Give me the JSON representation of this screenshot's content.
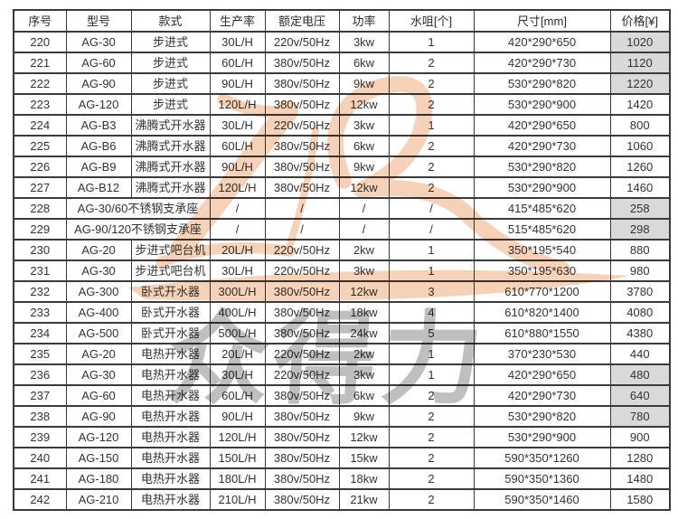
{
  "chart_data": {
    "type": "table",
    "columns": [
      "序号",
      "型号",
      "款式",
      "生产率",
      "额定电压",
      "功率",
      "水咀[个]",
      "尺寸[mm]",
      "价格[¥]"
    ],
    "rows": [
      {
        "no": "220",
        "model": "AG-30",
        "style": "步进式",
        "rate": "30L/H",
        "voltage": "220v/50Hz",
        "power": "3kw",
        "nozzles": "1",
        "size": "420*290*650",
        "price": "1020",
        "price_shaded": true,
        "merged": false
      },
      {
        "no": "221",
        "model": "AG-60",
        "style": "步进式",
        "rate": "60L/H",
        "voltage": "380v/50Hz",
        "power": "6kw",
        "nozzles": "2",
        "size": "420*290*730",
        "price": "1120",
        "price_shaded": true,
        "merged": false
      },
      {
        "no": "222",
        "model": "AG-90",
        "style": "步进式",
        "rate": "90L/H",
        "voltage": "380v/50Hz",
        "power": "9kw",
        "nozzles": "2",
        "size": "530*290*820",
        "price": "1220",
        "price_shaded": true,
        "merged": false
      },
      {
        "no": "223",
        "model": "AG-120",
        "style": "步进式",
        "rate": "120L/H",
        "voltage": "380v/50Hz",
        "power": "12kw",
        "nozzles": "2",
        "size": "530*290*900",
        "price": "1420",
        "price_shaded": false,
        "merged": false
      },
      {
        "no": "224",
        "model": "AG-B3",
        "style": "沸腾式开水器",
        "rate": "30L/H",
        "voltage": "220v/50Hz",
        "power": "3kw",
        "nozzles": "1",
        "size": "420*290*650",
        "price": "800",
        "price_shaded": false,
        "merged": false
      },
      {
        "no": "225",
        "model": "AG-B6",
        "style": "沸腾式开水器",
        "rate": "60L/H",
        "voltage": "380v/50Hz",
        "power": "6kw",
        "nozzles": "2",
        "size": "420*290*730",
        "price": "1060",
        "price_shaded": false,
        "merged": false
      },
      {
        "no": "226",
        "model": "AG-B9",
        "style": "沸腾式开水器",
        "rate": "90L/H",
        "voltage": "380v/50Hz",
        "power": "9kw",
        "nozzles": "2",
        "size": "530*290*820",
        "price": "1260",
        "price_shaded": false,
        "merged": false
      },
      {
        "no": "227",
        "model": "AG-B12",
        "style": "沸腾式开水器",
        "rate": "120L/H",
        "voltage": "380v/50Hz",
        "power": "12kw",
        "nozzles": "2",
        "size": "530*290*900",
        "price": "1460",
        "price_shaded": false,
        "merged": false
      },
      {
        "no": "228",
        "model": "AG-30/60不锈钢支承座",
        "style": "",
        "rate": "/",
        "voltage": "/",
        "power": "/",
        "nozzles": "/",
        "size": "415*485*620",
        "price": "258",
        "price_shaded": true,
        "merged": true
      },
      {
        "no": "229",
        "model": "AG-90/120不锈钢支承座",
        "style": "",
        "rate": "/",
        "voltage": "/",
        "power": "/",
        "nozzles": "/",
        "size": "515*485*620",
        "price": "298",
        "price_shaded": true,
        "merged": true
      },
      {
        "no": "230",
        "model": "AG-20",
        "style": "步进式吧台机",
        "rate": "20L/H",
        "voltage": "220v/50Hz",
        "power": "2kw",
        "nozzles": "1",
        "size": "350*195*540",
        "price": "880",
        "price_shaded": false,
        "merged": false
      },
      {
        "no": "231",
        "model": "AG-30",
        "style": "步进式吧台机",
        "rate": "30L/H",
        "voltage": "220v/50Hz",
        "power": "3kw",
        "nozzles": "1",
        "size": "350*195*630",
        "price": "980",
        "price_shaded": false,
        "merged": false
      },
      {
        "no": "232",
        "model": "AG-300",
        "style": "卧式开水器",
        "rate": "300L/H",
        "voltage": "380v/50Hz",
        "power": "12kw",
        "nozzles": "3",
        "size": "610*770*1200",
        "price": "3780",
        "price_shaded": false,
        "merged": false
      },
      {
        "no": "233",
        "model": "AG-400",
        "style": "卧式开水器",
        "rate": "400L/H",
        "voltage": "380v/50Hz",
        "power": "18kw",
        "nozzles": "4",
        "size": "610*820*1400",
        "price": "4080",
        "price_shaded": false,
        "merged": false
      },
      {
        "no": "234",
        "model": "AG-500",
        "style": "卧式开水器",
        "rate": "500L/H",
        "voltage": "380v/50Hz",
        "power": "24kw",
        "nozzles": "5",
        "size": "610*880*1550",
        "price": "4380",
        "price_shaded": false,
        "merged": false
      },
      {
        "no": "235",
        "model": "AG-20",
        "style": "电热开水器",
        "rate": "20L/H",
        "voltage": "220v/50Hz",
        "power": "2kw",
        "nozzles": "1",
        "size": "370*230*530",
        "price": "440",
        "price_shaded": false,
        "merged": false
      },
      {
        "no": "236",
        "model": "AG-30",
        "style": "电热开水器",
        "rate": "30L/H",
        "voltage": "220v/50Hz",
        "power": "3kw",
        "nozzles": "1",
        "size": "420*290*650",
        "price": "480",
        "price_shaded": true,
        "merged": false
      },
      {
        "no": "237",
        "model": "AG-60",
        "style": "电热开水器",
        "rate": "60L/H",
        "voltage": "380v/50Hz",
        "power": "6kw",
        "nozzles": "2",
        "size": "420*290*730",
        "price": "640",
        "price_shaded": true,
        "merged": false
      },
      {
        "no": "238",
        "model": "AG-90",
        "style": "电热开水器",
        "rate": "90L/H",
        "voltage": "380v/50Hz",
        "power": "9kw",
        "nozzles": "2",
        "size": "530*290*820",
        "price": "780",
        "price_shaded": true,
        "merged": false
      },
      {
        "no": "239",
        "model": "AG-120",
        "style": "电热开水器",
        "rate": "120L/H",
        "voltage": "380v/50Hz",
        "power": "12kw",
        "nozzles": "2",
        "size": "530*290*900",
        "price": "900",
        "price_shaded": false,
        "merged": false
      },
      {
        "no": "240",
        "model": "AG-150",
        "style": "电热开水器",
        "rate": "150L/H",
        "voltage": "380v/50Hz",
        "power": "15kw",
        "nozzles": "2",
        "size": "590*350*1260",
        "price": "1280",
        "price_shaded": false,
        "merged": false
      },
      {
        "no": "241",
        "model": "AG-180",
        "style": "电热开水器",
        "rate": "180L/H",
        "voltage": "380v/50Hz",
        "power": "18kw",
        "nozzles": "2",
        "size": "590*350*1360",
        "price": "1480",
        "price_shaded": false,
        "merged": false
      },
      {
        "no": "242",
        "model": "AG-210",
        "style": "电热开水器",
        "rate": "210L/H",
        "voltage": "380v/50Hz",
        "power": "21kw",
        "nozzles": "2",
        "size": "590*350*1460",
        "price": "1580",
        "price_shaded": false,
        "merged": false
      }
    ],
    "title": "",
    "layout_hints": "grid on, all cells centered, shaded price cells gray"
  },
  "watermark": {
    "text": "众得力",
    "text_color": "#7f7f7f",
    "logo_color": "#eda879"
  },
  "colors": {
    "border": "#3a3a3a",
    "cell_text": "#333333",
    "shaded_cell": "#d9d9d9",
    "background": "#ffffff"
  }
}
